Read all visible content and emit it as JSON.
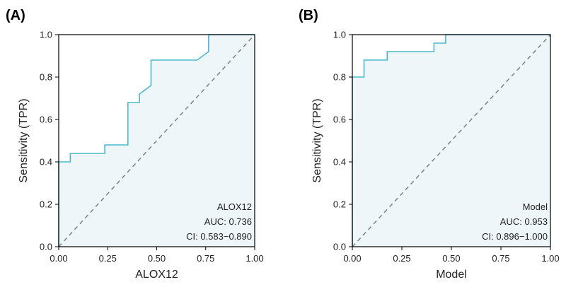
{
  "chart_data": [
    {
      "type": "line",
      "panel_label": "(A)",
      "title": "",
      "xlabel": "ALOX12",
      "ylabel": "Sensitivity (TPR)",
      "xlim": [
        0,
        1
      ],
      "ylim": [
        0,
        1
      ],
      "xticks": [
        "0.00",
        "0.25",
        "0.50",
        "0.75",
        "1.00"
      ],
      "yticks": [
        "0.0",
        "0.2",
        "0.4",
        "0.6",
        "0.8",
        "1.0"
      ],
      "annotation": {
        "name": "ALOX12",
        "auc": "AUC: 0.736",
        "ci": "CI: 0.583−0.890"
      },
      "series": [
        {
          "name": "ALOX12",
          "x": [
            0,
            0,
            0.059,
            0.059,
            0.235,
            0.235,
            0.353,
            0.353,
            0.412,
            0.412,
            0.471,
            0.471,
            0.706,
            0.765,
            0.765,
            1.0
          ],
          "y": [
            0,
            0.4,
            0.4,
            0.44,
            0.44,
            0.48,
            0.48,
            0.68,
            0.68,
            0.72,
            0.76,
            0.88,
            0.88,
            0.92,
            1.0,
            1.0
          ]
        },
        {
          "name": "chance",
          "x": [
            0,
            1
          ],
          "y": [
            0,
            1
          ]
        }
      ]
    },
    {
      "type": "line",
      "panel_label": "(B)",
      "title": "",
      "xlabel": "Model",
      "ylabel": "Sensitivity (TPR)",
      "xlim": [
        0,
        1
      ],
      "ylim": [
        0,
        1
      ],
      "xticks": [
        "0.00",
        "0.25",
        "0.50",
        "0.75",
        "1.00"
      ],
      "yticks": [
        "0.0",
        "0.2",
        "0.4",
        "0.6",
        "0.8",
        "1.0"
      ],
      "annotation": {
        "name": "Model",
        "auc": "AUC: 0.953",
        "ci": "CI: 0.896−1.000"
      },
      "series": [
        {
          "name": "Model",
          "x": [
            0,
            0,
            0.059,
            0.059,
            0.176,
            0.176,
            0.412,
            0.412,
            0.471,
            0.471,
            1.0
          ],
          "y": [
            0,
            0.8,
            0.8,
            0.88,
            0.88,
            0.92,
            0.92,
            0.96,
            0.96,
            1.0,
            1.0
          ]
        },
        {
          "name": "chance",
          "x": [
            0,
            1
          ],
          "y": [
            0,
            1
          ]
        }
      ]
    }
  ],
  "colors": {
    "roc_line": "#4db8cc",
    "roc_fill": "#eef6f9",
    "chance_line": "#808080",
    "axis": "#000000"
  }
}
